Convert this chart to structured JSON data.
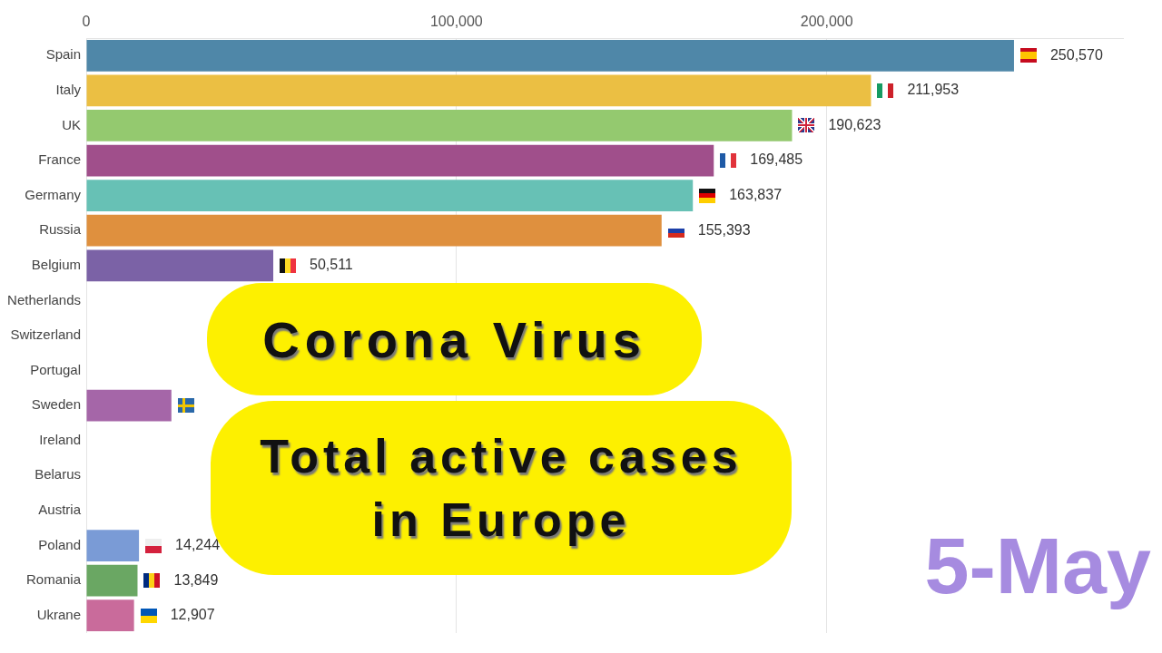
{
  "chart_data": {
    "type": "bar",
    "orientation": "horizontal",
    "title": "Corona Virus",
    "subtitle": "Total active cases in Europe",
    "categories": [
      "Spain",
      "Italy",
      "UK",
      "France",
      "Germany",
      "Russia",
      "Belgium",
      "Netherlands",
      "Switzerland",
      "Portugal",
      "Sweden",
      "Ireland",
      "Belarus",
      "Austria",
      "Poland",
      "Romania",
      "Ukrane"
    ],
    "values": [
      250570,
      211953,
      190623,
      169485,
      163837,
      155393,
      50511,
      null,
      null,
      null,
      23000,
      null,
      null,
      null,
      14244,
      13849,
      12907
    ],
    "colors": [
      "#4f87a8",
      "#ebbf43",
      "#94c96f",
      "#a04f8b",
      "#67c1b5",
      "#df903e",
      "#7b62a6",
      "#45a57a",
      "#8a5a8c",
      "#d6665f",
      "#a566a8",
      "#c9a24e",
      "#5cb8a5",
      "#b07f5f",
      "#7a9bd6",
      "#6aa763",
      "#c96b9b"
    ],
    "value_labels": [
      "250,570",
      "211,953",
      "190,623",
      "169,485",
      "163,837",
      "155,393",
      "50,511",
      null,
      null,
      null,
      null,
      null,
      null,
      null,
      "14,244",
      "13,849",
      "12,907"
    ],
    "xlim": [
      0,
      280000
    ],
    "xticks": [
      0,
      {
        "value": 100000,
        "label": "100,000"
      },
      {
        "value": 200000,
        "label": "200,000"
      }
    ],
    "grid": "x",
    "annotations": [
      "5-May"
    ]
  }
}
